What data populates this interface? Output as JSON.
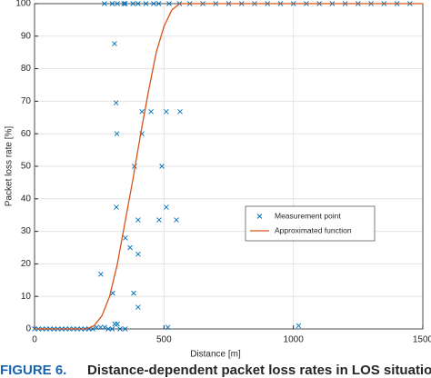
{
  "chart_data": {
    "type": "scatter",
    "xlabel": "Distance [m]",
    "ylabel": "Packet loss rate [%]",
    "caption_label": "FIGURE 6.",
    "caption": "Distance-dependent packet loss rates in LOS situations for",
    "xlim": [
      0,
      1500
    ],
    "xticks": [
      0,
      500,
      1000,
      1500
    ],
    "ylim": [
      0,
      100
    ],
    "yticks": [
      0,
      10,
      20,
      30,
      40,
      50,
      60,
      70,
      80,
      90,
      100
    ],
    "grid": true,
    "series": [
      {
        "name": "Measurement point",
        "type": "scatter",
        "color": "#0072bd",
        "x": [
          0,
          15,
          30,
          45,
          60,
          75,
          90,
          105,
          120,
          135,
          150,
          165,
          180,
          195,
          210,
          225,
          240,
          255,
          270,
          285,
          300,
          330,
          350,
          515,
          309,
          315,
          318,
          316,
          256,
          302,
          310,
          320,
          369,
          386,
          383,
          400,
          400,
          400,
          415,
          415,
          450,
          481,
          492,
          509,
          509,
          562,
          548,
          351,
          270,
          300,
          320,
          345,
          350,
          380,
          400,
          430,
          460,
          480,
          520,
          560,
          600,
          650,
          700,
          750,
          800,
          850,
          900,
          950,
          1000,
          1050,
          1100,
          1150,
          1200,
          1250,
          1300,
          1350,
          1400,
          1450,
          1020
        ],
        "values": [
          0,
          0,
          0,
          0,
          0,
          0,
          0,
          0,
          0,
          0,
          0,
          0,
          0,
          0,
          0,
          0,
          0.5,
          0.5,
          0.5,
          0,
          0,
          0,
          0,
          0.5,
          87.7,
          69.5,
          60,
          37.4,
          16.8,
          11,
          1.5,
          1.5,
          25,
          50,
          11,
          6.7,
          23,
          33.5,
          60,
          66.8,
          66.8,
          33.5,
          50,
          37.4,
          66.8,
          66.8,
          33.5,
          28,
          100,
          100,
          100,
          100,
          100,
          100,
          100,
          100,
          100,
          100,
          100,
          100,
          100,
          100,
          100,
          100,
          100,
          100,
          100,
          100,
          100,
          100,
          100,
          100,
          100,
          100,
          100,
          100,
          100,
          100,
          1
        ]
      },
      {
        "name": "Approximated function",
        "type": "line",
        "color": "#d95319",
        "x": [
          0,
          200,
          230,
          260,
          290,
          320,
          350,
          380,
          410,
          440,
          470,
          500,
          530,
          560,
          600,
          1500
        ],
        "values": [
          0,
          0,
          1,
          4,
          10,
          20,
          33,
          46,
          60,
          73,
          85,
          93,
          98,
          100,
          100,
          100
        ]
      }
    ]
  }
}
